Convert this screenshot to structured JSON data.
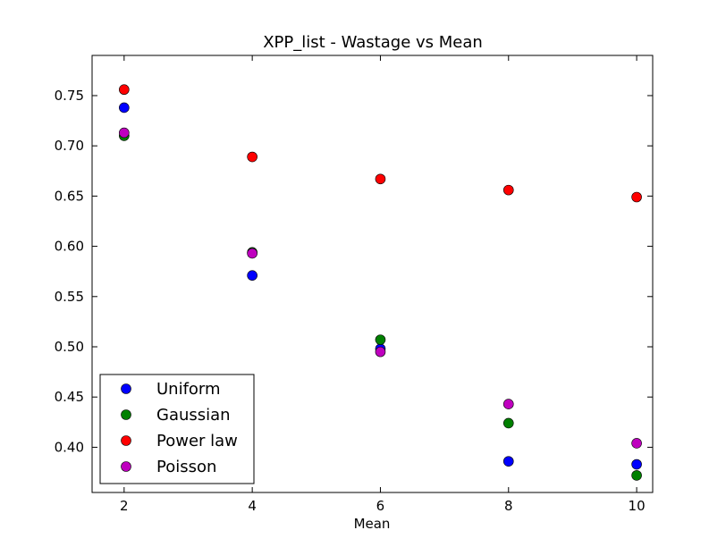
{
  "chart_data": {
    "type": "scatter",
    "title": "XPP_list - Wastage vs Mean",
    "xlabel": "Mean",
    "ylabel": "",
    "xlim": [
      1.5,
      10.25
    ],
    "ylim": [
      0.355,
      0.79
    ],
    "xticks": [
      2,
      4,
      6,
      8,
      10
    ],
    "xtick_labels": [
      "2",
      "4",
      "6",
      "8",
      "10"
    ],
    "yticks": [
      0.4,
      0.45,
      0.5,
      0.55,
      0.6,
      0.65,
      0.7,
      0.75
    ],
    "ytick_labels": [
      "0.40",
      "0.45",
      "0.50",
      "0.55",
      "0.60",
      "0.65",
      "0.70",
      "0.75"
    ],
    "grid": false,
    "legend_position": "lower-left",
    "series": [
      {
        "name": "Uniform",
        "color": "#0000ff",
        "x": [
          2,
          4,
          6,
          8,
          10
        ],
        "y": [
          0.738,
          0.571,
          0.498,
          0.386,
          0.383
        ]
      },
      {
        "name": "Gaussian",
        "color": "#008000",
        "x": [
          2,
          4,
          6,
          8,
          10
        ],
        "y": [
          0.71,
          0.594,
          0.507,
          0.424,
          0.372
        ]
      },
      {
        "name": "Power law",
        "color": "#ff0000",
        "x": [
          2,
          4,
          6,
          8,
          10
        ],
        "y": [
          0.756,
          0.689,
          0.667,
          0.656,
          0.649
        ]
      },
      {
        "name": "Poisson",
        "color": "#bf00bf",
        "x": [
          2,
          4,
          6,
          8,
          10
        ],
        "y": [
          0.713,
          0.593,
          0.495,
          0.443,
          0.404
        ]
      }
    ]
  }
}
